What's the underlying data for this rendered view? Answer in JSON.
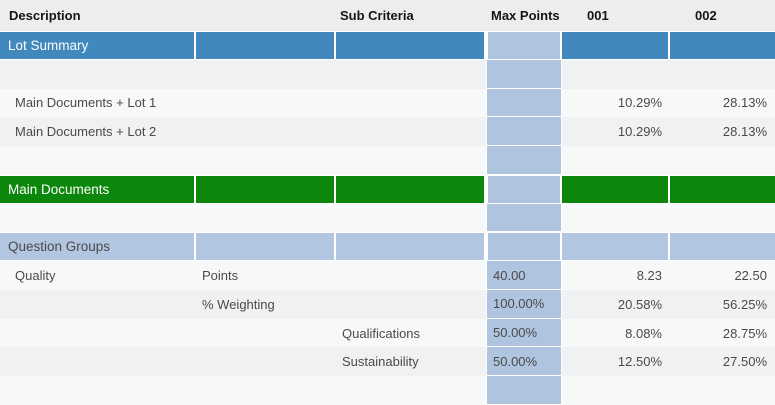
{
  "table": {
    "header": {
      "description": "Description",
      "criteria": "",
      "sub_criteria": "Sub Criteria",
      "max_points": "Max Points",
      "col_001": "001",
      "col_002": "002"
    },
    "rows": [
      {
        "type": "band-blue",
        "name": "lot-summary",
        "description": "Lot Summary"
      },
      {
        "type": "empty",
        "shade": "dark"
      },
      {
        "type": "data",
        "shade": "light",
        "name": "main-documents-lot-1",
        "description": "Main Documents + Lot 1",
        "val_001": "10.29%",
        "val_002": "28.13%"
      },
      {
        "type": "data",
        "shade": "dark",
        "name": "main-documents-lot-2",
        "description": "Main Documents + Lot 2",
        "val_001": "10.29%",
        "val_002": "28.13%"
      },
      {
        "type": "empty",
        "shade": "light"
      },
      {
        "type": "band-green",
        "name": "main-documents",
        "description": "Main Documents"
      },
      {
        "type": "empty",
        "shade": "light"
      },
      {
        "type": "band-light",
        "name": "question-groups",
        "description": "Question Groups"
      },
      {
        "type": "data",
        "shade": "light",
        "name": "quality-points",
        "description": "Quality",
        "criteria": "Points",
        "max_points": "40.00",
        "val_001": "8.23",
        "val_002": "22.50"
      },
      {
        "type": "data",
        "shade": "dark",
        "name": "quality-weighting",
        "criteria": "% Weighting",
        "max_points": "100.00%",
        "val_001": "20.58%",
        "val_002": "56.25%"
      },
      {
        "type": "data",
        "shade": "light",
        "name": "qualifications",
        "sub_criteria": "Qualifications",
        "max_points": "50.00%",
        "val_001": "8.08%",
        "val_002": "28.75%"
      },
      {
        "type": "data",
        "shade": "dark",
        "name": "sustainability",
        "sub_criteria": "Sustainability",
        "max_points": "50.00%",
        "val_001": "12.50%",
        "val_002": "27.50%"
      },
      {
        "type": "empty",
        "shade": "light"
      }
    ],
    "colors": {
      "band_blue": "#4189BD",
      "band_green": "#0B870B",
      "band_light_blue": "#B2C6E1",
      "max_points_column": "#AFC4DF",
      "header_bg": "#EDEDED",
      "row_light": "#F7F8F8",
      "row_dark": "#F0F1F2"
    }
  }
}
